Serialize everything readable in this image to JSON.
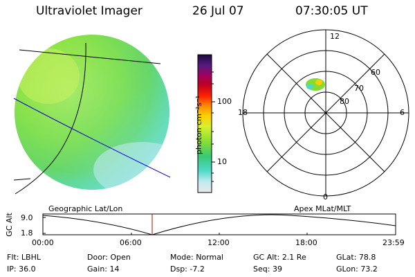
{
  "header": {
    "title": "Ultraviolet Imager",
    "date": "26 Jul 07",
    "time": "07:30:05 UT"
  },
  "colorbar": {
    "label": "photon cm⁻²s⁻¹",
    "ticks": [
      "100",
      "10"
    ]
  },
  "polar": {
    "mlt_labels": [
      "12",
      "18",
      "6",
      "0"
    ],
    "lat_labels": [
      "60",
      "70",
      "80"
    ]
  },
  "timeline": {
    "left_label": "Geographic Lat/Lon",
    "right_label": "Apex MLat/MLT",
    "y_axis_label": "GC Alt",
    "y_ticks": [
      "9.0",
      "1.8"
    ],
    "x_ticks": [
      "00:00",
      "06:00",
      "12:00",
      "18:00",
      "23:59"
    ]
  },
  "status": {
    "row1": [
      {
        "key": "Flt:",
        "val": "LBHL"
      },
      {
        "key": "Door:",
        "val": "Open"
      },
      {
        "key": "Mode:",
        "val": "Normal"
      },
      {
        "key": "GC Alt:",
        "val": "2.1 Re"
      },
      {
        "key": "GLat:",
        "val": "78.8"
      }
    ],
    "row2": [
      {
        "key": "IP:",
        "val": "36.0"
      },
      {
        "key": "Gain:",
        "val": "14"
      },
      {
        "key": "Dsp:",
        "val": "-7.2"
      },
      {
        "key": "Seq:",
        "val": "39"
      },
      {
        "key": "GLon:",
        "val": "73.2"
      }
    ]
  },
  "colors": {
    "disk_main": "#7fdd33",
    "disk_light": "#b8ef55",
    "disk_cyan": "#4fd8c8",
    "current_time_marker": "#cc0000",
    "geo_line_blue": "#0000cc"
  }
}
